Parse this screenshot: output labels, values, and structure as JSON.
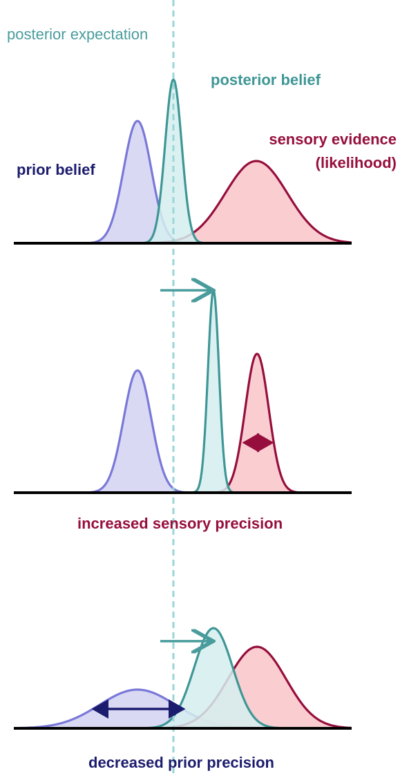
{
  "labels": {
    "posterior_expectation": "posterior expectation",
    "posterior_belief": "posterior belief",
    "sensory_evidence": "sensory evidence",
    "likelihood": "(likelihood)",
    "prior_belief": "prior belief",
    "increased_sensory_precision": "increased sensory precision",
    "decreased_prior_precision": "decreased prior precision"
  },
  "colors": {
    "prior_stroke": "#7a78d8",
    "prior_fill": "#d4d2f2",
    "posterior_stroke": "#3f9696",
    "posterior_fill": "#d5eeee",
    "sensory_stroke": "#960f3c",
    "sensory_fill": "#f9c4c9",
    "dashed_line": "#9ad6d6",
    "baseline": "#000000",
    "posterior_text": "#3f9696",
    "posterior_expectation_text": "#4a9c9c",
    "sensory_text": "#960f3c",
    "prior_text": "#1c1c6e",
    "double_arrow_sensory": "#960f3c",
    "double_arrow_prior": "#1c1c6e",
    "shift_arrow": "#4a9c9c"
  },
  "panels": [
    {
      "name": "baseline",
      "prior": {
        "mean": 199,
        "sd": 20,
        "height": 177
      },
      "posterior": {
        "mean": 251,
        "sd": 12,
        "height": 237
      },
      "sensory": {
        "mean": 371,
        "sd": 45,
        "height": 119
      }
    },
    {
      "name": "increased_sensory_precision",
      "prior": {
        "mean": 199,
        "sd": 20,
        "height": 177
      },
      "posterior": {
        "mean": 309,
        "sd": 8,
        "height": 293
      },
      "sensory": {
        "mean": 372,
        "sd": 17,
        "height": 201
      },
      "sensory_precision_arrow": true,
      "shift_arrow": true
    },
    {
      "name": "decreased_prior_precision",
      "prior": {
        "mean": 199,
        "sd": 55,
        "height": 56
      },
      "posterior": {
        "mean": 309,
        "sd": 28,
        "height": 145
      },
      "sensory": {
        "mean": 372,
        "sd": 42,
        "height": 118
      },
      "prior_precision_arrow": true,
      "shift_arrow": true
    }
  ]
}
